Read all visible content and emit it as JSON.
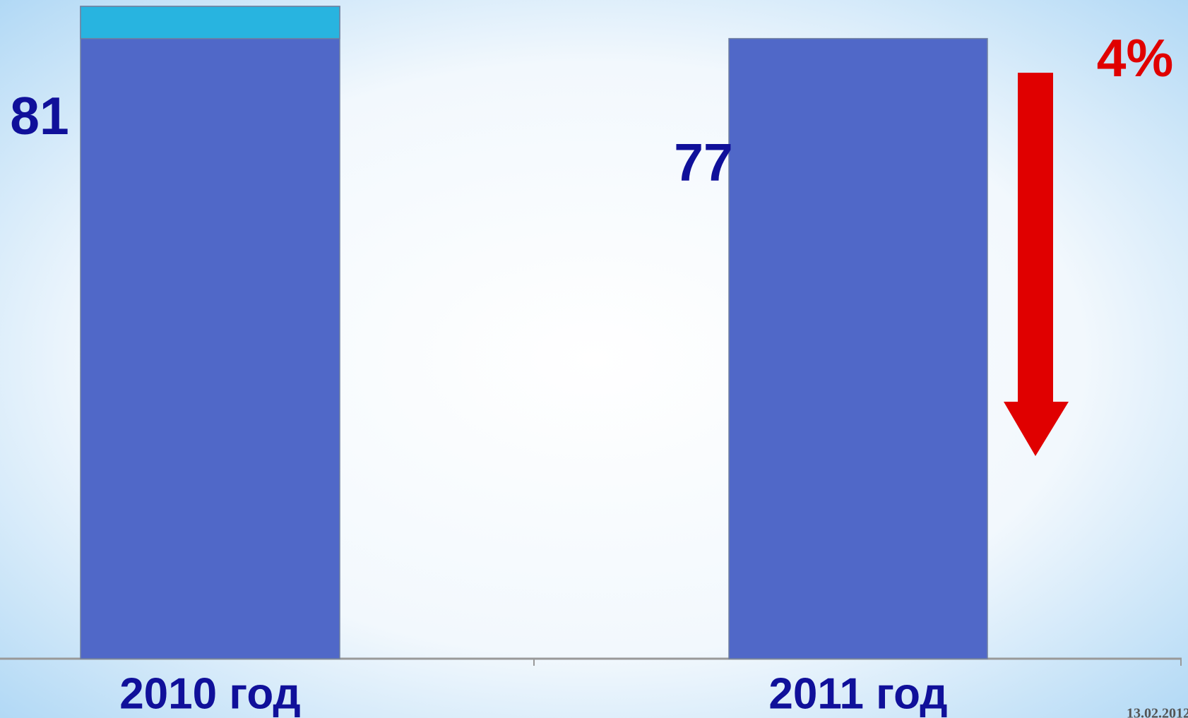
{
  "chart_data": {
    "type": "bar",
    "categories": [
      "2010 год",
      "2011 год"
    ],
    "values": [
      81,
      77
    ],
    "color": "#5068c8",
    "highlight_color": "#28b4e0",
    "label_color": "#10109a",
    "ylim": [
      0,
      81
    ],
    "annotation": "4%",
    "annotation_color": "#e00000",
    "footer_date": "13.02.2012"
  }
}
